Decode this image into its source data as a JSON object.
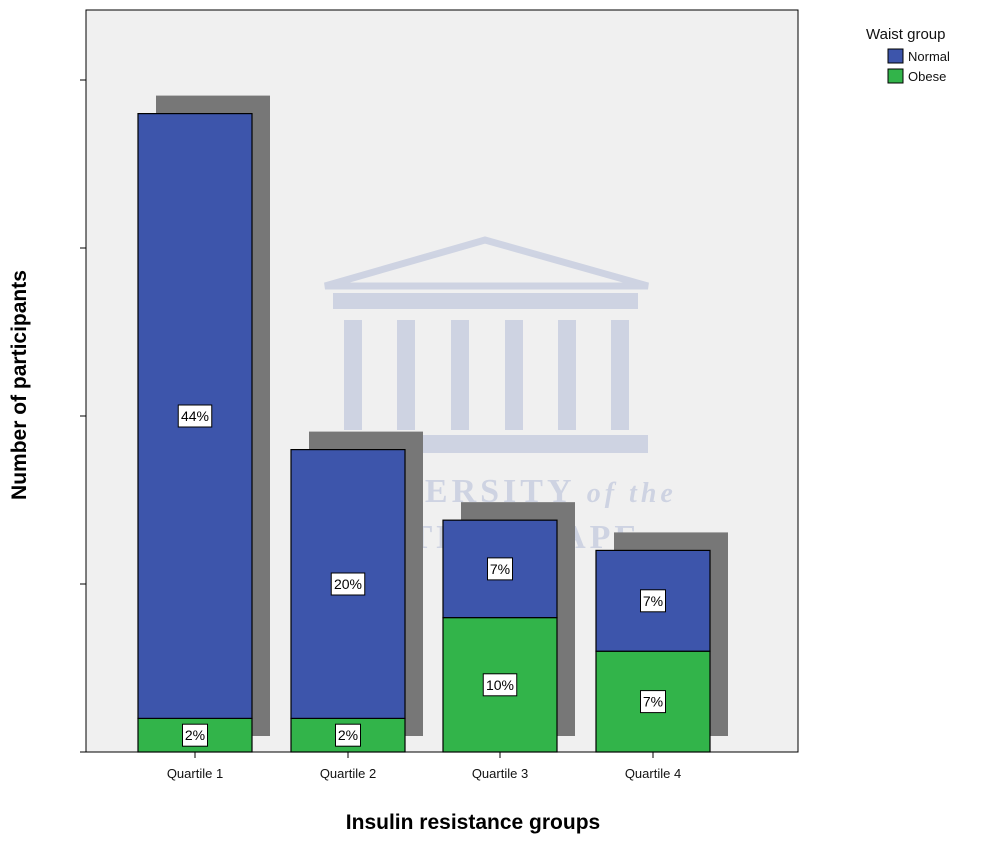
{
  "chart_data": {
    "type": "bar",
    "stacked": true,
    "xlabel": "Insulin resistance groups",
    "ylabel": "Number of participants",
    "categories": [
      "Quartile 1",
      "Quartile 2",
      "Quartile 3",
      "Quartile 4"
    ],
    "legend": {
      "title": "Waist group",
      "position": "top-right"
    },
    "series": [
      {
        "name": "Obese",
        "color": "#32b44a",
        "values": [
          1,
          1,
          4,
          3
        ],
        "labels": [
          "2%",
          "2%",
          "10%",
          "7%"
        ]
      },
      {
        "name": "Normal",
        "color": "#3d55ab",
        "values": [
          18,
          8,
          2.9,
          3
        ],
        "labels": [
          "44%",
          "20%",
          "7%",
          "7%"
        ]
      }
    ],
    "ylim": [
      0,
      22
    ],
    "yticks": [
      0,
      5,
      10,
      15,
      20
    ],
    "y_tick_labels_visible": false,
    "grid": false,
    "background": "#f0f0f0",
    "shadow_color": "#777777",
    "watermark": {
      "line1": "UNIVERSITY",
      "line1_italic": "of the",
      "line2": "WESTERN CAPE"
    }
  }
}
